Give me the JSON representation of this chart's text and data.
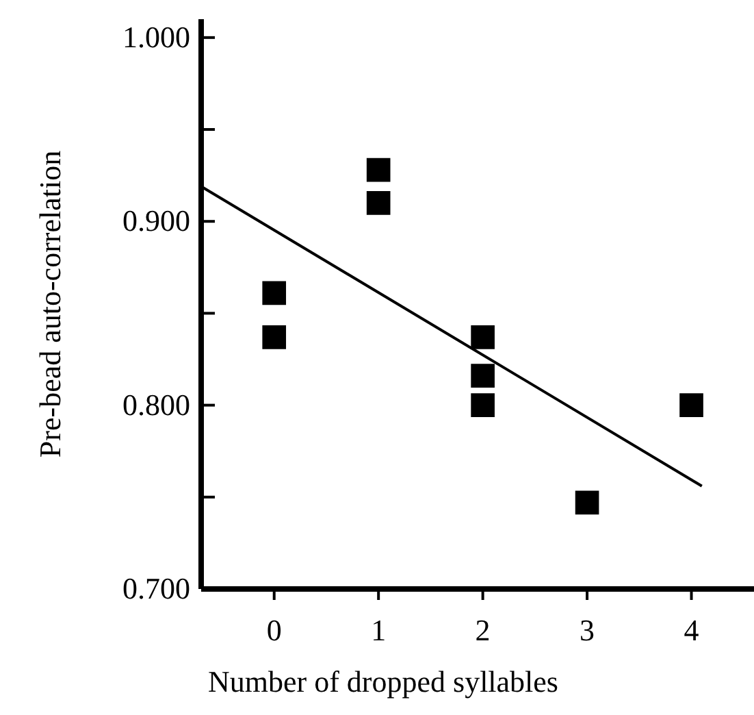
{
  "chart_data": {
    "type": "scatter",
    "xlabel": "Number of dropped syllables",
    "ylabel": "Pre-bead auto-correlation",
    "xlim": [
      -0.7,
      4.6
    ],
    "xticks": [
      0,
      1,
      2,
      3,
      4
    ],
    "ylim": [
      0.7,
      1.01
    ],
    "yticks": [
      {
        "value": 0.7,
        "label": "0.700"
      },
      {
        "value": 0.75,
        "label": null
      },
      {
        "value": 0.8,
        "label": "0.800"
      },
      {
        "value": 0.85,
        "label": null
      },
      {
        "value": 0.9,
        "label": "0.900"
      },
      {
        "value": 0.95,
        "label": null
      },
      {
        "value": 1.0,
        "label": "1.000"
      }
    ],
    "grid": false,
    "series": [
      {
        "color": "#000000",
        "marker": "square",
        "x": [
          0,
          0,
          1,
          1,
          2,
          2,
          2,
          3,
          4
        ],
        "values": [
          0.861,
          0.837,
          0.928,
          0.91,
          0.837,
          0.816,
          0.8,
          0.747,
          0.8
        ]
      },
      {
        "type": "line",
        "color": "#000000",
        "x": [
          -0.7,
          4.1
        ],
        "values": [
          0.919,
          0.756
        ]
      }
    ]
  }
}
